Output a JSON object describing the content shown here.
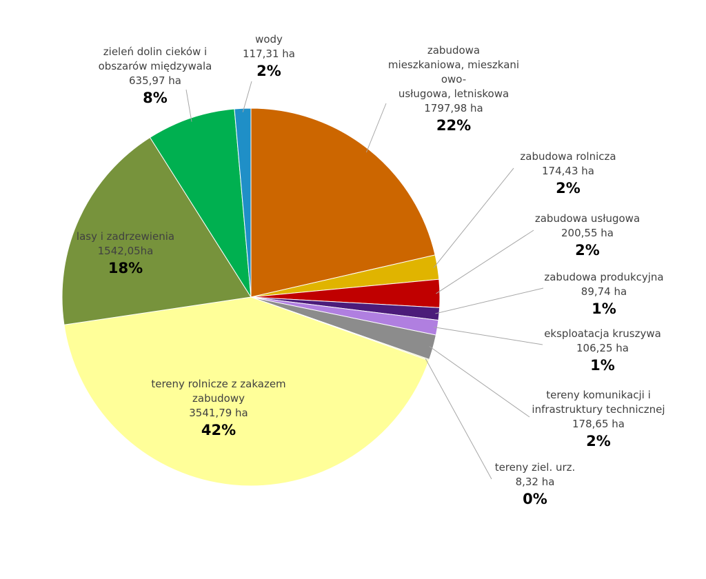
{
  "chart_data": {
    "type": "pie",
    "title": "",
    "unit": "ha",
    "slices": [
      {
        "lines": [
          "zabudowa",
          "mieszkaniowa, mieszkani",
          "owo-",
          "usługowa, letniskowa"
        ],
        "value": 1797.98,
        "value_label": "1797,98 ha",
        "percent_label": "22%",
        "color": "#cc6600"
      },
      {
        "lines": [
          "zabudowa rolnicza"
        ],
        "value": 174.43,
        "value_label": "174,43 ha",
        "percent_label": "2%",
        "color": "#e0b400"
      },
      {
        "lines": [
          "zabudowa usługowa"
        ],
        "value": 200.55,
        "value_label": "200,55 ha",
        "percent_label": "2%",
        "color": "#c00000"
      },
      {
        "lines": [
          "zabudowa produkcyjna"
        ],
        "value": 89.74,
        "value_label": "89,74 ha",
        "percent_label": "1%",
        "color": "#4b1c7a"
      },
      {
        "lines": [
          "eksploatacja kruszywa"
        ],
        "value": 106.25,
        "value_label": "106,25 ha",
        "percent_label": "1%",
        "color": "#b07fe0"
      },
      {
        "lines": [
          "tereny komunikacji i",
          "infrastruktury technicznej"
        ],
        "value": 178.65,
        "value_label": "178,65 ha",
        "percent_label": "2%",
        "color": "#8c8c8c"
      },
      {
        "lines": [
          "tereny ziel. urz."
        ],
        "value": 8.32,
        "value_label": "8,32 ha",
        "percent_label": "0%",
        "color": "#e5e5a0"
      },
      {
        "lines": [
          "tereny rolnicze z zakazem",
          "zabudowy"
        ],
        "value": 3541.79,
        "value_label": "3541,79 ha",
        "percent_label": "42%",
        "color": "#ffff99"
      },
      {
        "lines": [
          "lasy i zadrzewienia"
        ],
        "value": 1542.05,
        "value_label": "1542,05ha",
        "percent_label": "18%",
        "color": "#77933c"
      },
      {
        "lines": [
          "zieleń dolin cieków i",
          "obszarów międzywala"
        ],
        "value": 635.97,
        "value_label": "635,97 ha",
        "percent_label": "8%",
        "color": "#00b050"
      },
      {
        "lines": [
          "wody"
        ],
        "value": 117.31,
        "value_label": "117,31 ha",
        "percent_label": "2%",
        "color": "#1f8fc7"
      }
    ]
  }
}
